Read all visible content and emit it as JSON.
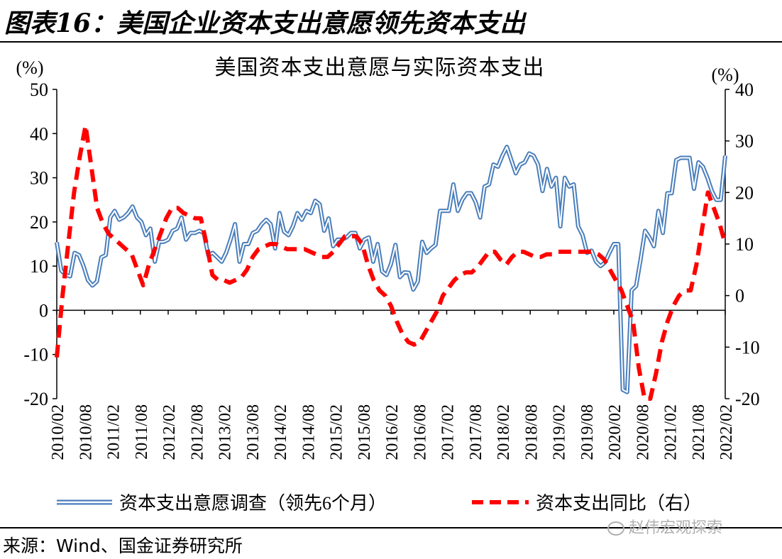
{
  "figure_title": "图表16：美国企业资本支出意愿领先资本支出",
  "source": "来源：Wind、国金证券研究所",
  "watermark": "赵伟宏观探索",
  "colors": {
    "series1": "#4a7ebb",
    "series2": "#ff0000"
  },
  "chart_data": {
    "type": "line",
    "title": "美国资本支出意愿与实际资本支出",
    "y_left": {
      "unit": "(%)",
      "lim": [
        -20,
        50
      ],
      "ticks": [
        -20,
        -10,
        0,
        10,
        20,
        30,
        40,
        50
      ]
    },
    "y_right": {
      "unit": "(%)",
      "lim": [
        -20,
        40
      ],
      "ticks": [
        -20,
        -10,
        0,
        10,
        20,
        30,
        40
      ]
    },
    "x_tick_labels": [
      "2010/02",
      "2010/08",
      "2011/02",
      "2011/08",
      "2012/02",
      "2012/08",
      "2013/02",
      "2013/08",
      "2014/02",
      "2014/08",
      "2015/02",
      "2015/08",
      "2016/02",
      "2016/08",
      "2017/02",
      "2017/08",
      "2018/02",
      "2018/08",
      "2019/02",
      "2019/08",
      "2020/02",
      "2020/08",
      "2021/02",
      "2021/08",
      "2022/02"
    ],
    "x_start": "2010/02",
    "x_end": "2022/02",
    "grid": false,
    "legend_position": "bottom",
    "series": [
      {
        "name": "资本支出意愿调查（领先6个月）",
        "axis": "left",
        "style": "double-line",
        "values": [
          15.4,
          9,
          8,
          7.7,
          13,
          12.5,
          10,
          6.8,
          5.6,
          6.5,
          12,
          12.5,
          21,
          22.5,
          20.5,
          21,
          22,
          23.5,
          21,
          20,
          17,
          18.5,
          11,
          15.5,
          15.5,
          16,
          18,
          18.5,
          21,
          16,
          17.5,
          17.5,
          18,
          17.5,
          12.5,
          13,
          12,
          11,
          13,
          16,
          19.5,
          11,
          15,
          15,
          17.5,
          18,
          19.5,
          20.5,
          19.5,
          14,
          22,
          17.8,
          17,
          19,
          22,
          20.5,
          22.5,
          22,
          24.8,
          24,
          18,
          20.8,
          14.5,
          16,
          16,
          16.5,
          17.5,
          17.5,
          14,
          16,
          16.5,
          11,
          15,
          8.8,
          8,
          10.5,
          14.8,
          7.5,
          8.6,
          8.5,
          4.7,
          6.5,
          15.5,
          13,
          14,
          14.8,
          22.5,
          22.5,
          22.5,
          28.5,
          22.5,
          25,
          26.5,
          26.5,
          24.5,
          21,
          28,
          28.5,
          33,
          32.5,
          35,
          37,
          34,
          31,
          33,
          33.5,
          35.5,
          35,
          33,
          27,
          32,
          28,
          30,
          19,
          30,
          28,
          28.5,
          19,
          17,
          13,
          13.5,
          11,
          10,
          10.8,
          13,
          15,
          15,
          -18,
          -18.5,
          4.5,
          5.5,
          11.5,
          18,
          16.5,
          14.5,
          22.5,
          17.5,
          26.5,
          26.5,
          34,
          34.5,
          34.5,
          34.5,
          27.5,
          33.5,
          32.5,
          30,
          27,
          25,
          25,
          35
        ]
      },
      {
        "name": "资本支出同比（右）",
        "axis": "right",
        "style": "dashed",
        "values": [
          -12,
          0,
          10,
          20,
          27,
          33,
          25,
          17,
          14,
          12,
          11,
          10,
          9,
          8,
          5,
          2,
          6,
          9,
          12,
          15,
          17,
          17,
          16,
          15.5,
          15,
          15,
          10,
          4,
          3,
          3,
          2.5,
          3,
          3.5,
          5,
          7.5,
          9,
          9.5,
          10,
          10,
          9.5,
          9,
          9,
          9,
          9,
          8.5,
          8,
          7.5,
          7.5,
          8.5,
          10,
          11.5,
          11.5,
          11.5,
          10,
          6,
          3,
          1,
          0,
          -2,
          -5,
          -7.5,
          -9,
          -9.5,
          -9,
          -7,
          -5,
          -3,
          0,
          1.5,
          3,
          4,
          4.5,
          4.5,
          5.5,
          7,
          8.5,
          8.5,
          7,
          6,
          7.5,
          8.5,
          8.5,
          8,
          7.5,
          7.5,
          8,
          8,
          8.5,
          8.5,
          8.5,
          8.5,
          8.5,
          8.5,
          8.5,
          8,
          7,
          5,
          3,
          1,
          -2,
          -5,
          -14,
          -20,
          -20,
          -15,
          -9,
          -5,
          -2,
          0,
          1,
          1,
          6,
          13,
          20,
          17,
          14,
          10
        ]
      }
    ]
  },
  "legend": {
    "item1": "资本支出意愿调查（领先6个月）",
    "item2": "资本支出同比（右）"
  }
}
